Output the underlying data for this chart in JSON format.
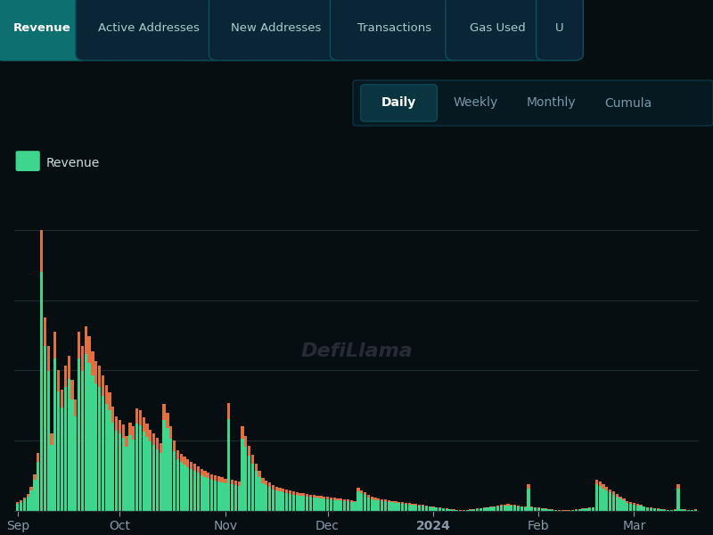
{
  "background_color": "#060e12",
  "chart_bg": "#060e12",
  "bar_green": "#3dd68c",
  "bar_orange": "#e07040",
  "legend_label": "Revenue",
  "watermark": "DefiLlama",
  "x_labels": [
    "Sep",
    "Oct",
    "Nov",
    "Dec",
    "2024",
    "Feb",
    "Mar"
  ],
  "grid_color": "#1e2e35",
  "axis_label_color": "#8899aa",
  "axis_label_2024_color": "#ffffff",
  "nav_button_bg": "#0a2535",
  "nav_button_active_bg": "#0d7070",
  "nav_button_border": "#0d5060",
  "nav_button_text_color": "#aacccc",
  "nav_button_active_text_color": "#ffffff",
  "time_strip_bg": "#061820",
  "time_button_active_bg": "#0a3540",
  "time_button_active_border": "#0d5060",
  "nav_buttons": [
    {
      "label": "Revenue",
      "active": true
    },
    {
      "label": "Active Addresses",
      "active": false
    },
    {
      "label": "New Addresses",
      "active": false
    },
    {
      "label": "Transactions",
      "active": false
    },
    {
      "label": "Gas Used",
      "active": false
    },
    {
      "label": "U",
      "active": false
    }
  ],
  "time_buttons": [
    {
      "label": "Daily",
      "active": true
    },
    {
      "label": "Weekly",
      "active": false
    },
    {
      "label": "Monthly",
      "active": false
    },
    {
      "label": "Cumula",
      "active": false
    }
  ],
  "values": [
    18,
    22,
    28,
    35,
    50,
    75,
    120,
    580,
    400,
    340,
    160,
    370,
    290,
    250,
    300,
    320,
    270,
    230,
    370,
    340,
    380,
    360,
    330,
    310,
    300,
    280,
    260,
    245,
    215,
    195,
    188,
    178,
    155,
    183,
    174,
    212,
    208,
    193,
    180,
    168,
    160,
    150,
    140,
    220,
    202,
    175,
    145,
    125,
    118,
    112,
    107,
    102,
    97,
    92,
    87,
    83,
    80,
    76,
    73,
    71,
    69,
    67,
    222,
    65,
    63,
    60,
    175,
    155,
    135,
    115,
    97,
    82,
    68,
    63,
    58,
    53,
    50,
    48,
    46,
    44,
    42,
    40,
    38,
    37,
    36,
    35,
    34,
    33,
    32,
    31,
    30,
    29,
    28,
    27,
    26,
    25,
    24,
    23,
    22,
    21,
    48,
    43,
    38,
    33,
    29,
    27,
    25,
    24,
    23,
    22,
    21,
    20,
    19,
    18,
    17,
    16,
    15,
    14,
    13,
    12,
    11,
    10,
    9,
    8,
    7,
    6,
    5,
    4,
    3,
    2,
    1,
    1,
    2,
    3,
    4,
    5,
    6,
    7,
    8,
    9,
    10,
    11,
    12,
    13,
    14,
    13,
    12,
    11,
    10,
    9,
    55,
    9,
    8,
    7,
    6,
    5,
    4,
    3,
    2,
    1,
    1,
    1,
    1,
    2,
    3,
    4,
    5,
    6,
    7,
    8,
    65,
    60,
    55,
    50,
    45,
    40,
    35,
    30,
    25,
    20,
    18,
    16,
    14,
    12,
    10,
    8,
    7,
    6,
    5,
    4,
    3,
    2,
    2,
    3,
    55,
    4,
    3,
    2,
    2,
    3
  ],
  "n_bars": 200
}
